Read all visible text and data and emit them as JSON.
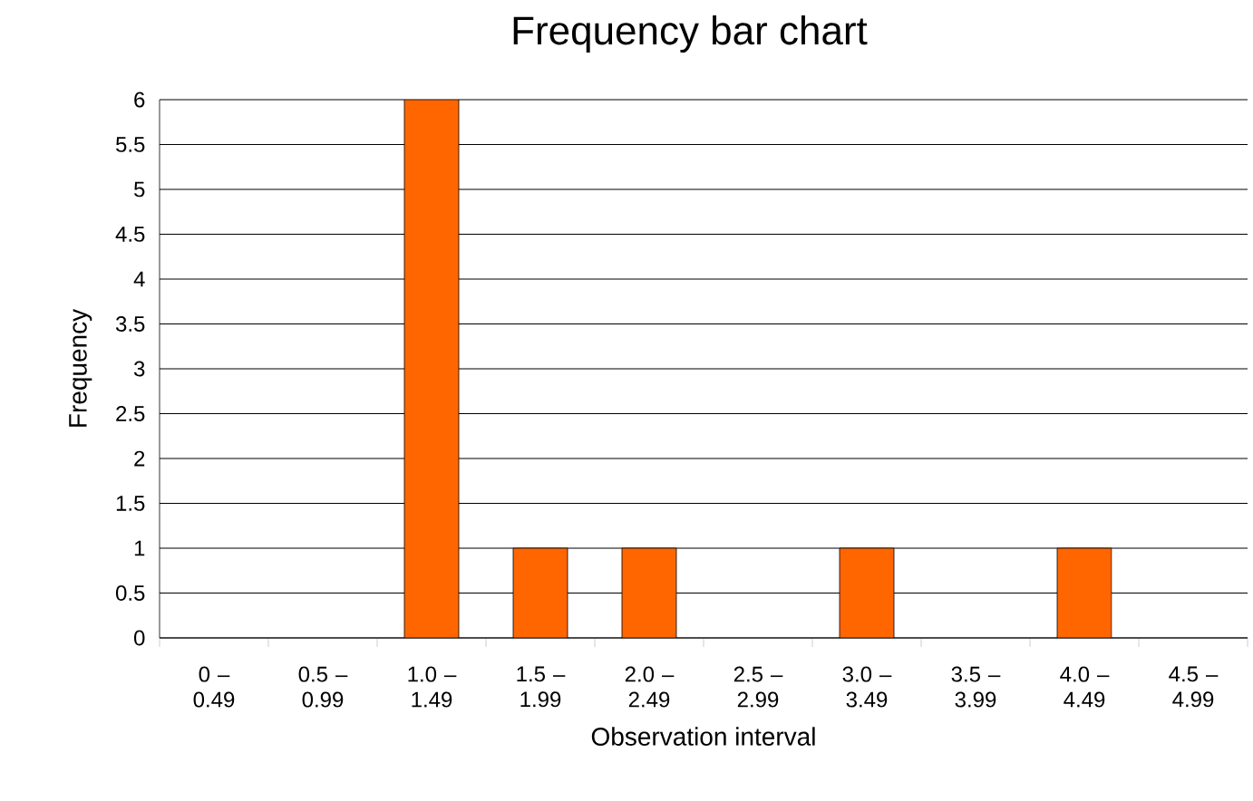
{
  "chart_data": {
    "type": "bar",
    "title": "Frequency bar chart",
    "xlabel": "Observation interval",
    "ylabel": "Frequency",
    "categories": [
      "0 – 0.49",
      "0.5 – 0.99",
      "1.0 – 1.49",
      "1.5 – 1.99",
      "2.0 – 2.49",
      "2.5 – 2.99",
      "3.0 – 3.49",
      "3.5 – 3.99",
      "4.0 – 4.49",
      "4.5 – 4.99"
    ],
    "values": [
      0,
      0,
      6,
      1,
      1,
      0,
      1,
      0,
      1,
      0
    ],
    "color": "#ff6600",
    "ylim": [
      0,
      6
    ],
    "yticks": [
      0,
      0.5,
      1,
      1.5,
      2,
      2.5,
      3,
      3.5,
      4,
      4.5,
      5,
      5.5,
      6
    ],
    "grid": "y"
  }
}
